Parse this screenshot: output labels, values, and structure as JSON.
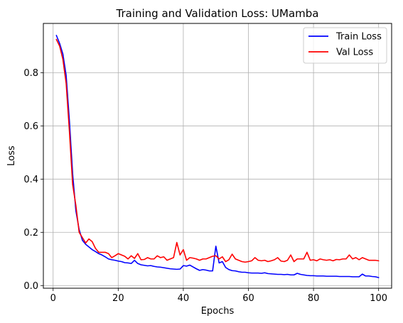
{
  "chart_data": {
    "type": "line",
    "title": "Training and Validation Loss: UMamba",
    "xlabel": "Epochs",
    "ylabel": "Loss",
    "xlim": [
      -3,
      104
    ],
    "ylim": [
      -0.01,
      0.985
    ],
    "xticks": [
      0,
      20,
      40,
      60,
      80,
      100
    ],
    "yticks": [
      0.0,
      0.2,
      0.4,
      0.6,
      0.8
    ],
    "ytick_labels": [
      "0.0",
      "0.2",
      "0.4",
      "0.6",
      "0.8"
    ],
    "grid": true,
    "legend_position": "top-right",
    "series": [
      {
        "name": "Train Loss",
        "color": "#0000ff",
        "x": [
          1,
          2,
          3,
          4,
          5,
          6,
          7,
          8,
          9,
          10,
          11,
          12,
          13,
          14,
          15,
          16,
          17,
          18,
          19,
          20,
          21,
          22,
          23,
          24,
          25,
          26,
          27,
          28,
          29,
          30,
          31,
          32,
          33,
          34,
          35,
          36,
          37,
          38,
          39,
          40,
          41,
          42,
          43,
          44,
          45,
          46,
          47,
          48,
          49,
          50,
          51,
          52,
          53,
          54,
          55,
          56,
          57,
          58,
          59,
          60,
          61,
          62,
          63,
          64,
          65,
          66,
          67,
          68,
          69,
          70,
          71,
          72,
          73,
          74,
          75,
          76,
          77,
          78,
          79,
          80,
          81,
          82,
          83,
          84,
          85,
          86,
          87,
          88,
          89,
          90,
          91,
          92,
          93,
          94,
          95,
          96,
          97,
          98,
          99,
          100
        ],
        "values": [
          0.94,
          0.91,
          0.87,
          0.79,
          0.62,
          0.42,
          0.28,
          0.21,
          0.17,
          0.155,
          0.145,
          0.135,
          0.128,
          0.12,
          0.115,
          0.108,
          0.1,
          0.097,
          0.095,
          0.092,
          0.09,
          0.086,
          0.085,
          0.083,
          0.095,
          0.083,
          0.078,
          0.076,
          0.074,
          0.075,
          0.072,
          0.07,
          0.069,
          0.067,
          0.065,
          0.063,
          0.062,
          0.061,
          0.062,
          0.075,
          0.073,
          0.077,
          0.07,
          0.063,
          0.057,
          0.06,
          0.058,
          0.055,
          0.055,
          0.148,
          0.085,
          0.09,
          0.068,
          0.06,
          0.056,
          0.055,
          0.052,
          0.05,
          0.05,
          0.048,
          0.047,
          0.047,
          0.047,
          0.046,
          0.048,
          0.045,
          0.044,
          0.043,
          0.042,
          0.042,
          0.041,
          0.042,
          0.04,
          0.04,
          0.046,
          0.042,
          0.04,
          0.038,
          0.037,
          0.037,
          0.036,
          0.036,
          0.036,
          0.035,
          0.035,
          0.035,
          0.035,
          0.034,
          0.034,
          0.034,
          0.034,
          0.033,
          0.033,
          0.033,
          0.043,
          0.036,
          0.036,
          0.034,
          0.033,
          0.03
        ]
      },
      {
        "name": "Val Loss",
        "color": "#ff0000",
        "x": [
          1,
          2,
          3,
          4,
          5,
          6,
          7,
          8,
          9,
          10,
          11,
          12,
          13,
          14,
          15,
          16,
          17,
          18,
          19,
          20,
          21,
          22,
          23,
          24,
          25,
          26,
          27,
          28,
          29,
          30,
          31,
          32,
          33,
          34,
          35,
          36,
          37,
          38,
          39,
          40,
          41,
          42,
          43,
          44,
          45,
          46,
          47,
          48,
          49,
          50,
          51,
          52,
          53,
          54,
          55,
          56,
          57,
          58,
          59,
          60,
          61,
          62,
          63,
          64,
          65,
          66,
          67,
          68,
          69,
          70,
          71,
          72,
          73,
          74,
          75,
          76,
          77,
          78,
          79,
          80,
          81,
          82,
          83,
          84,
          85,
          86,
          87,
          88,
          89,
          90,
          91,
          92,
          93,
          94,
          95,
          96,
          97,
          98,
          99,
          100
        ],
        "values": [
          0.925,
          0.9,
          0.85,
          0.76,
          0.58,
          0.38,
          0.3,
          0.2,
          0.18,
          0.16,
          0.175,
          0.165,
          0.14,
          0.125,
          0.125,
          0.125,
          0.12,
          0.105,
          0.112,
          0.12,
          0.115,
          0.11,
          0.1,
          0.112,
          0.102,
          0.12,
          0.097,
          0.098,
          0.105,
          0.1,
          0.1,
          0.112,
          0.105,
          0.108,
          0.095,
          0.1,
          0.105,
          0.162,
          0.115,
          0.135,
          0.095,
          0.105,
          0.103,
          0.1,
          0.095,
          0.1,
          0.1,
          0.105,
          0.11,
          0.112,
          0.1,
          0.108,
          0.09,
          0.097,
          0.118,
          0.1,
          0.095,
          0.09,
          0.088,
          0.09,
          0.093,
          0.105,
          0.095,
          0.093,
          0.095,
          0.09,
          0.093,
          0.097,
          0.105,
          0.092,
          0.09,
          0.095,
          0.115,
          0.09,
          0.1,
          0.1,
          0.1,
          0.125,
          0.095,
          0.097,
          0.093,
          0.1,
          0.097,
          0.095,
          0.097,
          0.093,
          0.098,
          0.097,
          0.1,
          0.1,
          0.115,
          0.1,
          0.105,
          0.097,
          0.105,
          0.1,
          0.095,
          0.095,
          0.095,
          0.093
        ]
      }
    ]
  }
}
